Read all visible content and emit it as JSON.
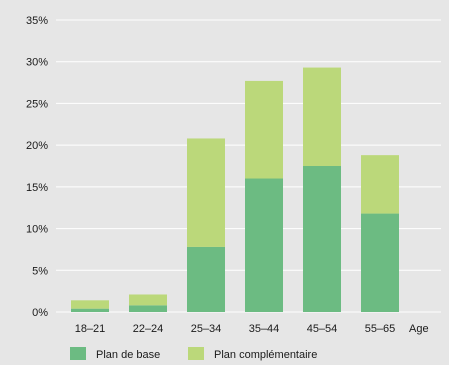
{
  "chart_data": {
    "type": "bar",
    "stacked": true,
    "categories": [
      "18–21",
      "22–24",
      "25–34",
      "35–44",
      "45–54",
      "55–65"
    ],
    "series": [
      {
        "name": "Plan de base",
        "values": [
          0.4,
          0.8,
          7.8,
          16.0,
          17.5,
          11.8
        ],
        "color": "#6cbb82"
      },
      {
        "name": "Plan complémentaire",
        "values": [
          1.0,
          1.3,
          13.0,
          11.7,
          11.8,
          7.0
        ],
        "color": "#bbd87a"
      }
    ],
    "x_axis_label": "Age",
    "y_ticks": [
      "0%",
      "5%",
      "10%",
      "15%",
      "20%",
      "25%",
      "30%",
      "35%"
    ],
    "ylim": [
      0,
      35
    ],
    "grid": true,
    "legend_position": "bottom"
  },
  "colors": {
    "background": "#e6e6e6",
    "grid": "#ffffff"
  }
}
